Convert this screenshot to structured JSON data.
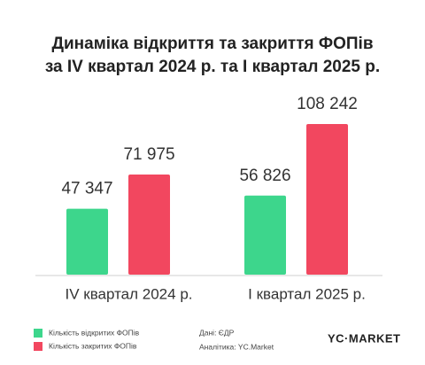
{
  "chart_data": {
    "type": "bar",
    "title_lines": [
      "Динаміка відкриття та закриття ФОПів",
      "за IV квартал 2024 р. та I квартал 2025 р."
    ],
    "categories": [
      "IV квартал 2024 р.",
      "I квартал 2025 р."
    ],
    "series": [
      {
        "name": "Кількість відкритих ФОПів",
        "color": "#3dd68c",
        "values": [
          47347,
          56826
        ],
        "value_labels": [
          "47 347",
          "56 826"
        ]
      },
      {
        "name": "Кількість закритих ФОПів",
        "color": "#f2475f",
        "values": [
          71975,
          108242
        ],
        "value_labels": [
          "71 975",
          "108 242"
        ]
      }
    ],
    "source": "Дані: ЄДР",
    "analytics": "Аналітика: YC.Market",
    "logo": "YC·MARKET"
  }
}
